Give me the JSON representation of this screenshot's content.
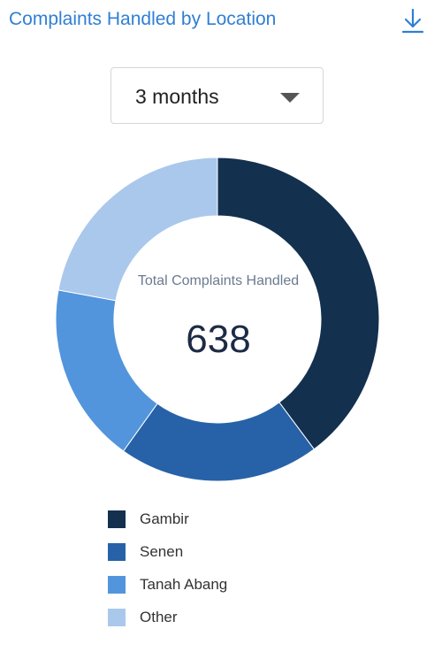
{
  "header": {
    "title": "Complaints Handled by Location",
    "download_icon": "download-icon"
  },
  "filter": {
    "selected": "3 months",
    "icon": "caret-down-icon"
  },
  "center": {
    "label": "Total Complaints Handled",
    "total": "638"
  },
  "colors": {
    "title": "#2f7fd4",
    "Gambir": "#13304f",
    "Senen": "#2762a8",
    "Tanah Abang": "#5295dc",
    "Other": "#aac8ec"
  },
  "chart_data": {
    "type": "pie",
    "donut": true,
    "title": "Complaints Handled by Location",
    "total": 638,
    "legend_position": "bottom",
    "categories": [
      "Gambir",
      "Senen",
      "Tanah Abang",
      "Other"
    ],
    "values": [
      254,
      128,
      115,
      141
    ],
    "colors": [
      "#13304f",
      "#2762a8",
      "#5295dc",
      "#aac8ec"
    ]
  }
}
